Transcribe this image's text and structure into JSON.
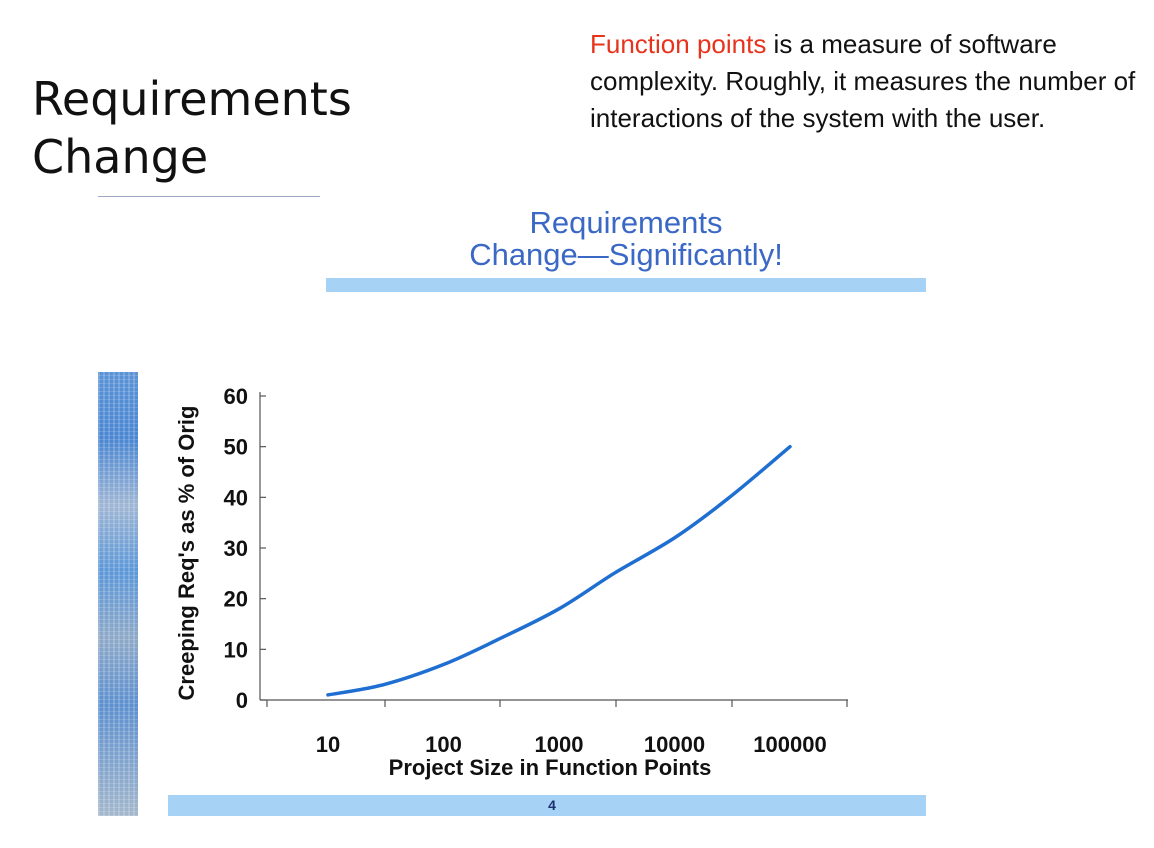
{
  "slide": {
    "title_line1": "Requirements",
    "title_line2": "Change",
    "note_highlight": "Function points",
    "note_rest": " is a measure of software complexity. Roughly, it measures the number of interactions of the system with the user.",
    "page_number": "4"
  },
  "colors": {
    "accent_bar": "#a6d2f6",
    "line": "#1f6ed1",
    "highlight": "#e8331c",
    "inner_title": "#3a68c4"
  },
  "chart_data": {
    "type": "line",
    "title": "Requirements\nChange—Significantly!",
    "title_line1": "Requirements",
    "title_line2": "Change—Significantly!",
    "xlabel": "Project Size in Function Points",
    "ylabel": "Creeping Req's as % of Orig",
    "x_scale": "log",
    "xlim": [
      10,
      100000
    ],
    "ylim": [
      0,
      60
    ],
    "x_ticks": [
      "10",
      "100",
      "1000",
      "10000",
      "100000"
    ],
    "y_ticks": [
      "0",
      "10",
      "20",
      "30",
      "40",
      "50",
      "60"
    ],
    "grid": false,
    "series": [
      {
        "values_x": [
          10,
          30,
          100,
          300,
          1000,
          3000,
          10000,
          30000,
          100000
        ],
        "values_y": [
          1,
          3,
          7,
          12,
          18,
          25,
          32,
          40,
          50
        ]
      }
    ]
  }
}
